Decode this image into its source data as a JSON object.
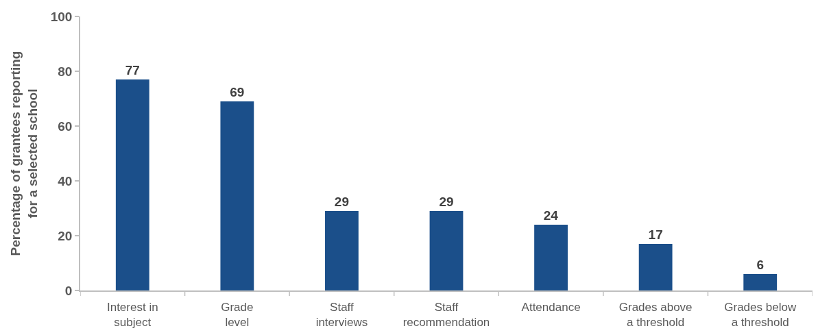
{
  "chart_data": {
    "type": "bar",
    "ylabel": "Percentage of grantees reporting\nfor a selected school",
    "categories": [
      "Interest in\nsubject",
      "Grade\nlevel",
      "Staff\ninterviews",
      "Staff\nrecommendation",
      "Attendance",
      "Grades above\na threshold",
      "Grades below\na threshold"
    ],
    "values": [
      77,
      69,
      29,
      29,
      24,
      17,
      6
    ],
    "color": "#1b4f8a",
    "ylim": [
      0,
      100
    ],
    "yticks": [
      0,
      20,
      40,
      60,
      80,
      100
    ],
    "data_labels": true,
    "grid": false
  }
}
